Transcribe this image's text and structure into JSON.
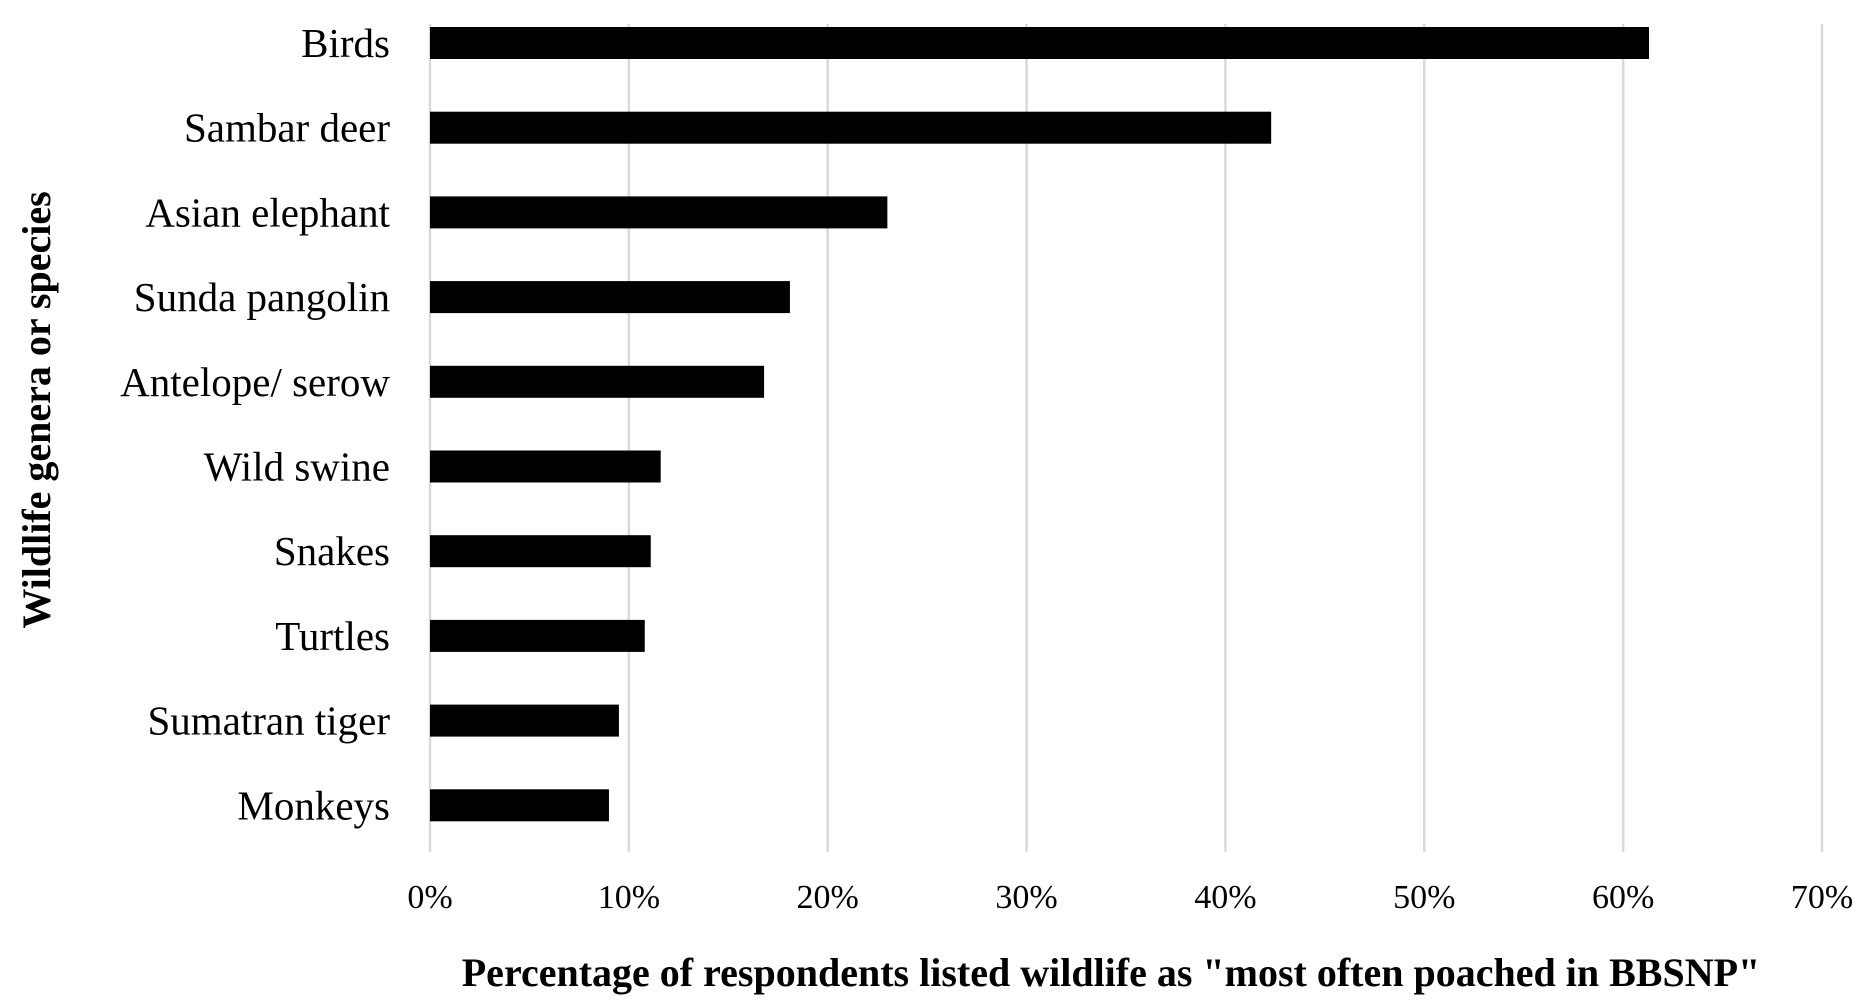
{
  "chart_data": {
    "type": "bar",
    "orientation": "horizontal",
    "categories": [
      "Birds",
      "Sambar deer",
      "Asian elephant",
      "Sunda pangolin",
      "Antelope/ serow",
      "Wild swine",
      "Snakes",
      "Turtles",
      "Sumatran tiger",
      "Monkeys"
    ],
    "values": [
      61.3,
      42.3,
      23.0,
      18.1,
      16.8,
      11.6,
      11.1,
      10.8,
      9.5,
      9.0
    ],
    "value_unit": "%",
    "xlabel": "Percentage of respondents listed wildlife as \"most often poached in BBSNP\"",
    "ylabel": "Wildlife genera or species",
    "xlim": [
      0,
      70
    ],
    "x_ticks": [
      0,
      10,
      20,
      30,
      40,
      50,
      60,
      70
    ],
    "x_tick_labels": [
      "0%",
      "10%",
      "20%",
      "30%",
      "40%",
      "50%",
      "60%",
      "70%"
    ],
    "grid": "vertical",
    "legend": "none",
    "bar_color": "#000000",
    "grid_color": "#d9d9d9"
  }
}
